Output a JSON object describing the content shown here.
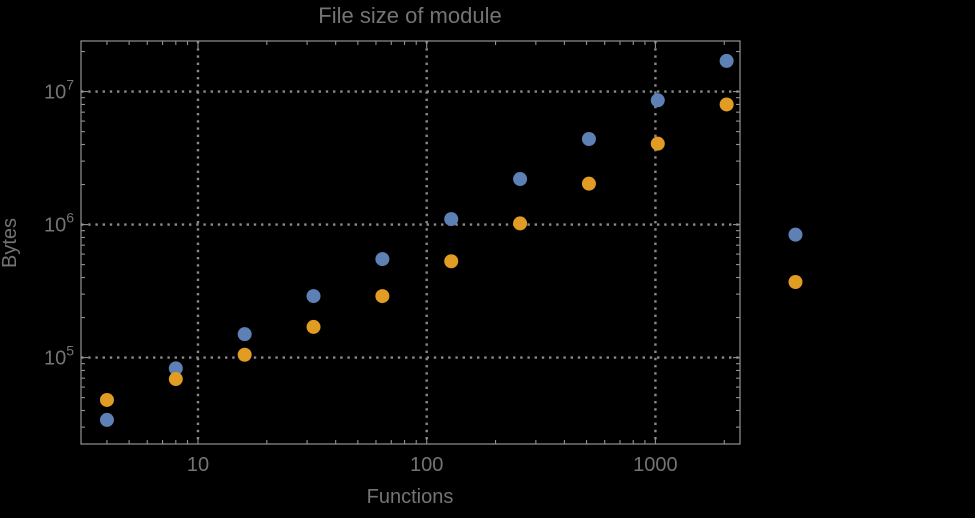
{
  "style": {
    "background": "#000000",
    "text_color": "#747474",
    "frame_color": "#929292",
    "grid_color": "#8a8a8a",
    "series_blue_color": "#5e81b5",
    "series_orange_color": "#e19c24",
    "point_radius": 7
  },
  "chart_data": {
    "type": "scatter",
    "title": "File size of module",
    "xlabel": "Functions",
    "ylabel": "Bytes",
    "x_scale": "log",
    "y_scale": "log",
    "xlim": [
      3.08,
      2343
    ],
    "ylim": [
      22400,
      24000000
    ],
    "grid": "dotted gray lines at decade ticks, frame with inward log minor ticks on all four sides",
    "legend": "none",
    "clipping_note": "last data pair (x=4096) is drawn outside the right edge of the plot frame",
    "x": [
      4,
      8,
      16,
      32,
      64,
      128,
      256,
      512,
      1024,
      2048,
      4096
    ],
    "series": [
      {
        "name": "blue",
        "color": "#5e81b5",
        "values": [
          34000,
          83000,
          150000,
          290000,
          550000,
          1100000,
          2200000,
          4400000,
          8600000,
          17000000,
          840000
        ]
      },
      {
        "name": "orange",
        "color": "#e19c24",
        "values": [
          48000,
          69000,
          105000,
          170000,
          290000,
          530000,
          1020000,
          2030000,
          4060000,
          8000000,
          370000
        ]
      }
    ],
    "x_ticks": [
      {
        "value": 10,
        "label": "10"
      },
      {
        "value": 100,
        "label": "100"
      },
      {
        "value": 1000,
        "label": "1000"
      }
    ],
    "y_ticks": [
      {
        "value": 100000,
        "base": "10",
        "exp": "5"
      },
      {
        "value": 1000000,
        "base": "10",
        "exp": "6"
      },
      {
        "value": 10000000,
        "base": "10",
        "exp": "7"
      }
    ]
  }
}
